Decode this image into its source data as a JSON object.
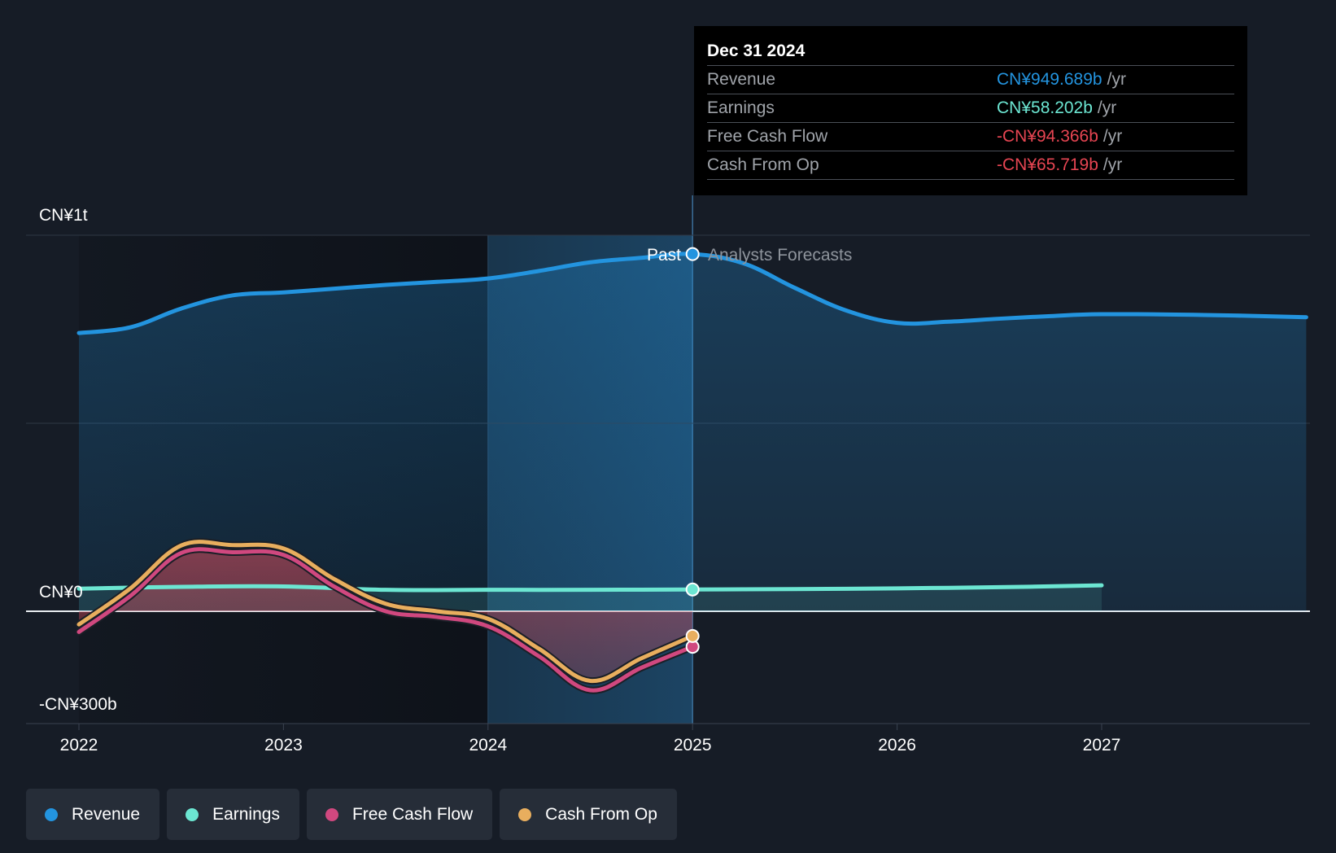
{
  "tooltip": {
    "date": "Dec 31 2024",
    "rows": [
      {
        "label": "Revenue",
        "value": "CN¥949.689b",
        "unit": "/yr",
        "color": "#2394df"
      },
      {
        "label": "Earnings",
        "value": "CN¥58.202b",
        "unit": "/yr",
        "color": "#6ce6d2"
      },
      {
        "label": "Free Cash Flow",
        "value": "-CN¥94.366b",
        "unit": "/yr",
        "color": "#e64552"
      },
      {
        "label": "Cash From Op",
        "value": "-CN¥65.719b",
        "unit": "/yr",
        "color": "#e64552"
      }
    ]
  },
  "divider": {
    "past_label": "Past",
    "forecast_label": "Analysts Forecasts"
  },
  "legend": [
    {
      "label": "Revenue",
      "color": "#2394df"
    },
    {
      "label": "Earnings",
      "color": "#6ce6d2"
    },
    {
      "label": "Free Cash Flow",
      "color": "#d0487f"
    },
    {
      "label": "Cash From Op",
      "color": "#e8ae5e"
    }
  ],
  "chart_data": {
    "type": "line",
    "currency": "CN¥",
    "y_ticks": [
      {
        "value": 1000,
        "label": "CN¥1t"
      },
      {
        "value": 0,
        "label": "CN¥0"
      },
      {
        "value": -300,
        "label": "-CN¥300b"
      }
    ],
    "ylim": [
      -300,
      1000
    ],
    "xlim": [
      2021.75,
      2028.0
    ],
    "x_ticks": [
      2022,
      2023,
      2024,
      2025,
      2026,
      2027
    ],
    "past_end": 2025.0,
    "highlight_range": [
      2024.0,
      2025.0
    ],
    "grid": true,
    "series": [
      {
        "name": "Revenue",
        "color": "#2394df",
        "x": [
          2022.0,
          2022.25,
          2022.5,
          2022.75,
          2023.0,
          2023.25,
          2023.5,
          2023.75,
          2024.0,
          2024.25,
          2024.5,
          2024.75,
          2025.0,
          2025.25,
          2025.5,
          2025.75,
          2026.0,
          2026.25,
          2026.5,
          2026.75,
          2027.0,
          2027.5,
          2028.0
        ],
        "y": [
          740,
          755,
          805,
          840,
          848,
          858,
          868,
          876,
          885,
          905,
          928,
          940,
          950,
          925,
          860,
          800,
          767,
          770,
          778,
          785,
          790,
          788,
          782
        ]
      },
      {
        "name": "Earnings",
        "color": "#6ce6d2",
        "x": [
          2022.0,
          2022.5,
          2023.0,
          2023.5,
          2024.0,
          2024.5,
          2025.0,
          2025.5,
          2026.0,
          2026.5,
          2027.0
        ],
        "y": [
          60,
          65,
          66,
          57,
          57,
          57,
          58,
          59,
          61,
          64,
          69
        ]
      },
      {
        "name": "Free Cash Flow",
        "color": "#d0487f",
        "x": [
          2022.0,
          2022.25,
          2022.5,
          2022.75,
          2023.0,
          2023.25,
          2023.5,
          2023.75,
          2024.0,
          2024.25,
          2024.5,
          2024.75,
          2025.0
        ],
        "y": [
          -55,
          40,
          155,
          157,
          150,
          65,
          0,
          -15,
          -40,
          -120,
          -210,
          -150,
          -94.366
        ]
      },
      {
        "name": "Cash From Op",
        "color": "#e8ae5e",
        "x": [
          2022.0,
          2022.25,
          2022.5,
          2022.75,
          2023.0,
          2023.25,
          2023.5,
          2023.75,
          2024.0,
          2024.25,
          2024.5,
          2024.75,
          2025.0
        ],
        "y": [
          -35,
          60,
          175,
          176,
          167,
          85,
          20,
          0,
          -20,
          -100,
          -185,
          -125,
          -65.719
        ]
      }
    ]
  }
}
